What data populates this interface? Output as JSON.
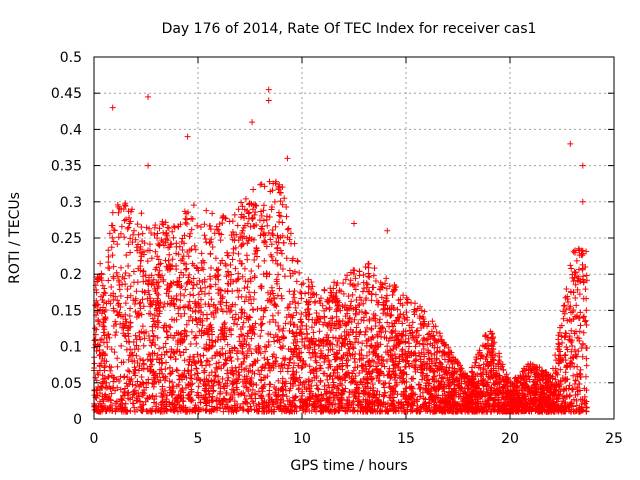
{
  "chart_data": {
    "type": "scatter",
    "title": "Day 176 of 2014, Rate Of TEC Index for receiver cas1",
    "xlabel": "GPS time / hours",
    "ylabel": "ROTI / TECUs",
    "xlim": [
      0,
      25
    ],
    "ylim": [
      0,
      0.5
    ],
    "x_ticks": [
      "0",
      "5",
      "10",
      "15",
      "20",
      "25"
    ],
    "y_ticks": [
      "0",
      "0.05",
      "0.1",
      "0.15",
      "0.2",
      "0.25",
      "0.3",
      "0.35",
      "0.4",
      "0.45",
      "0.5"
    ],
    "grid": true,
    "marker": "+",
    "color": "#ff0000",
    "series": [
      {
        "name": "ROTI",
        "points_summary": "dense scatter of several thousand samples, 0-23.7 h",
        "envelope_x": [
          0,
          1,
          2,
          3,
          4,
          5,
          6,
          7,
          8,
          9,
          10,
          11,
          12,
          13,
          14,
          15,
          16,
          17,
          18,
          19,
          20,
          21,
          22,
          23,
          23.7
        ],
        "envelope_upper": [
          0.18,
          0.3,
          0.3,
          0.27,
          0.28,
          0.3,
          0.28,
          0.3,
          0.33,
          0.33,
          0.2,
          0.18,
          0.2,
          0.22,
          0.2,
          0.17,
          0.15,
          0.1,
          0.06,
          0.13,
          0.05,
          0.08,
          0.06,
          0.23,
          0.25
        ],
        "outliers": [
          {
            "x": 0.9,
            "y": 0.43
          },
          {
            "x": 2.6,
            "y": 0.445
          },
          {
            "x": 2.6,
            "y": 0.35
          },
          {
            "x": 4.5,
            "y": 0.39
          },
          {
            "x": 7.6,
            "y": 0.41
          },
          {
            "x": 8.4,
            "y": 0.455
          },
          {
            "x": 8.4,
            "y": 0.44
          },
          {
            "x": 9.3,
            "y": 0.36
          },
          {
            "x": 12.5,
            "y": 0.27
          },
          {
            "x": 14.1,
            "y": 0.26
          },
          {
            "x": 22.9,
            "y": 0.38
          },
          {
            "x": 23.5,
            "y": 0.35
          },
          {
            "x": 23.5,
            "y": 0.3
          }
        ]
      }
    ]
  }
}
